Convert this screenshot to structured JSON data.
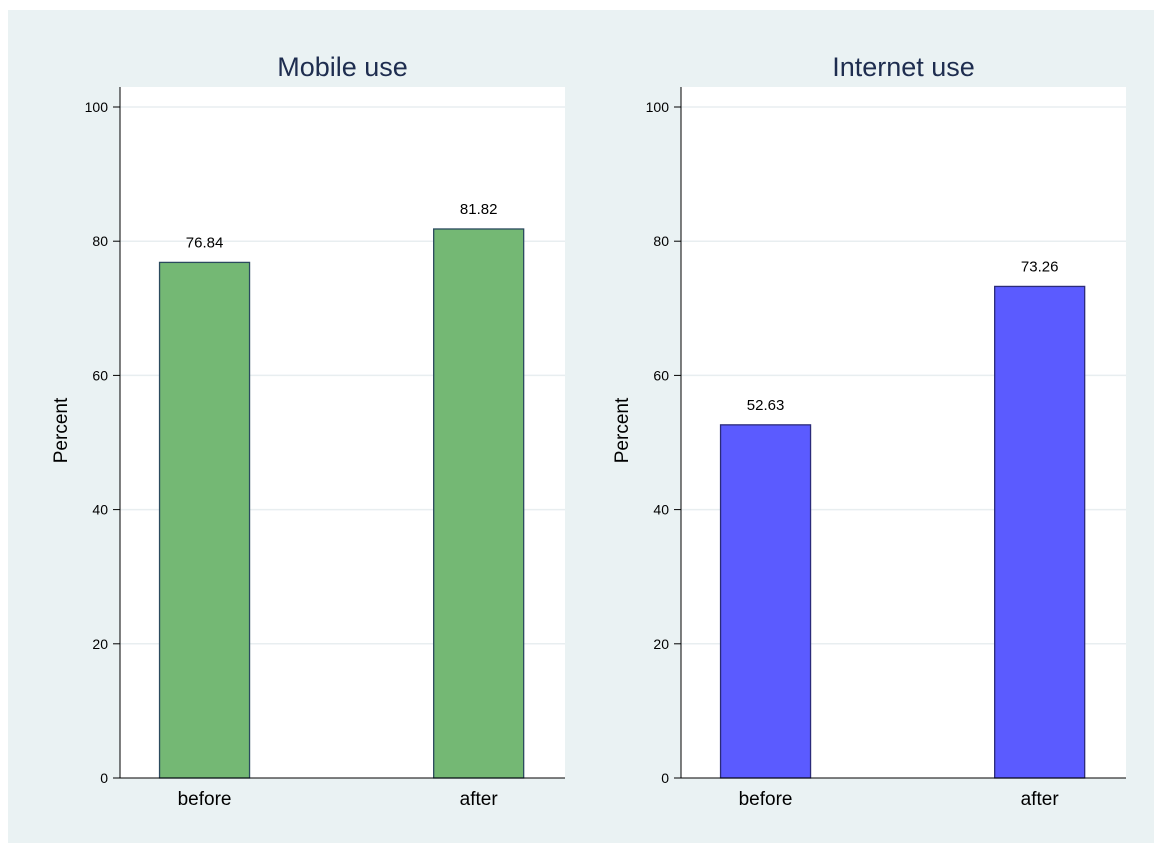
{
  "chart_data": [
    {
      "type": "bar",
      "title": "Mobile use",
      "ylabel": "Percent",
      "xlabel": "",
      "categories": [
        "before",
        "after"
      ],
      "values": [
        76.84,
        81.82
      ],
      "value_labels": [
        "76.84",
        "81.82"
      ],
      "ylim": [
        0,
        100
      ],
      "yticks": [
        0,
        20,
        40,
        60,
        80,
        100
      ],
      "ytick_labels": [
        "0",
        "20",
        "40",
        "60",
        "80",
        "100"
      ],
      "grid": true,
      "bar_color": "#74b874",
      "bar_edge_color": "#2b4a5e"
    },
    {
      "type": "bar",
      "title": "Internet use",
      "ylabel": "Percent",
      "xlabel": "",
      "categories": [
        "before",
        "after"
      ],
      "values": [
        52.63,
        73.26
      ],
      "value_labels": [
        "52.63",
        "73.26"
      ],
      "ylim": [
        0,
        100
      ],
      "yticks": [
        0,
        20,
        40,
        60,
        80,
        100
      ],
      "ytick_labels": [
        "0",
        "20",
        "40",
        "60",
        "80",
        "100"
      ],
      "grid": true,
      "bar_color": "#5b5bff",
      "bar_edge_color": "#2b2b7a"
    }
  ],
  "colors": {
    "figure_background": "#eaf2f3",
    "plot_background": "#ffffff",
    "gridline": "#e8eef0",
    "axis": "#000000",
    "title": "#1e2d4f"
  }
}
